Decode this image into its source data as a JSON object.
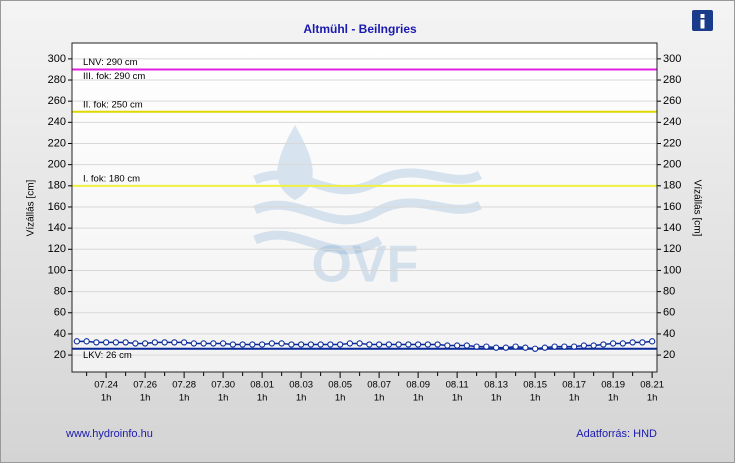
{
  "chart_data": {
    "type": "line",
    "title": "Altmühl - Beilngries",
    "y_label": "Vízállás [cm]",
    "y2_label": "Vízállás [cm]",
    "footer_left": "www.hydroinfo.hu",
    "footer_right": "Adatforrás: HND",
    "watermark": "OVF",
    "x_tick_sublabel": "1h",
    "categories": [
      null,
      null,
      null,
      "07.24",
      null,
      null,
      null,
      "07.26",
      null,
      null,
      null,
      "07.28",
      null,
      null,
      null,
      "07.30",
      null,
      null,
      null,
      "08.01",
      null,
      null,
      null,
      "08.03",
      null,
      null,
      null,
      "08.05",
      null,
      null,
      null,
      "08.07",
      null,
      null,
      null,
      "08.09",
      null,
      null,
      null,
      "08.11",
      null,
      null,
      null,
      "08.13",
      null,
      null,
      null,
      "08.15",
      null,
      null,
      null,
      "08.17",
      null,
      null,
      null,
      "08.19",
      null,
      null,
      null,
      "08.21"
    ],
    "series": [
      {
        "name": "Vízállás",
        "color": "#0a2a9a",
        "values": [
          33,
          33,
          32,
          32,
          32,
          32,
          31,
          31,
          32,
          32,
          32,
          32,
          31,
          31,
          31,
          31,
          30,
          30,
          30,
          30,
          31,
          31,
          30,
          30,
          30,
          30,
          30,
          30,
          31,
          31,
          30,
          30,
          30,
          30,
          30,
          30,
          30,
          30,
          29,
          29,
          29,
          28,
          28,
          27,
          27,
          28,
          27,
          26,
          27,
          28,
          28,
          28,
          29,
          29,
          30,
          31,
          31,
          32,
          32,
          33
        ]
      }
    ],
    "ylim": [
      4,
      315
    ],
    "yticks": [
      20,
      40,
      60,
      80,
      100,
      120,
      140,
      160,
      180,
      200,
      220,
      240,
      260,
      280,
      300
    ],
    "grid": true,
    "reference_lines": [
      {
        "label": "LNV: 290 cm",
        "value": 290,
        "color": "#e020e0",
        "label_position": "above"
      },
      {
        "label": "III. fok: 290 cm",
        "value": 290,
        "color": "#e020e0",
        "label_position": "below"
      },
      {
        "label": "II. fok: 250 cm",
        "value": 250,
        "color": "#e0d800",
        "label_position": "above"
      },
      {
        "label": "I. fok: 180 cm",
        "value": 180,
        "color": "#f0f040",
        "label_position": "above"
      },
      {
        "label": "LKV: 26 cm",
        "value": 26,
        "color": "#0a2a9a",
        "label_position": "below"
      }
    ]
  }
}
